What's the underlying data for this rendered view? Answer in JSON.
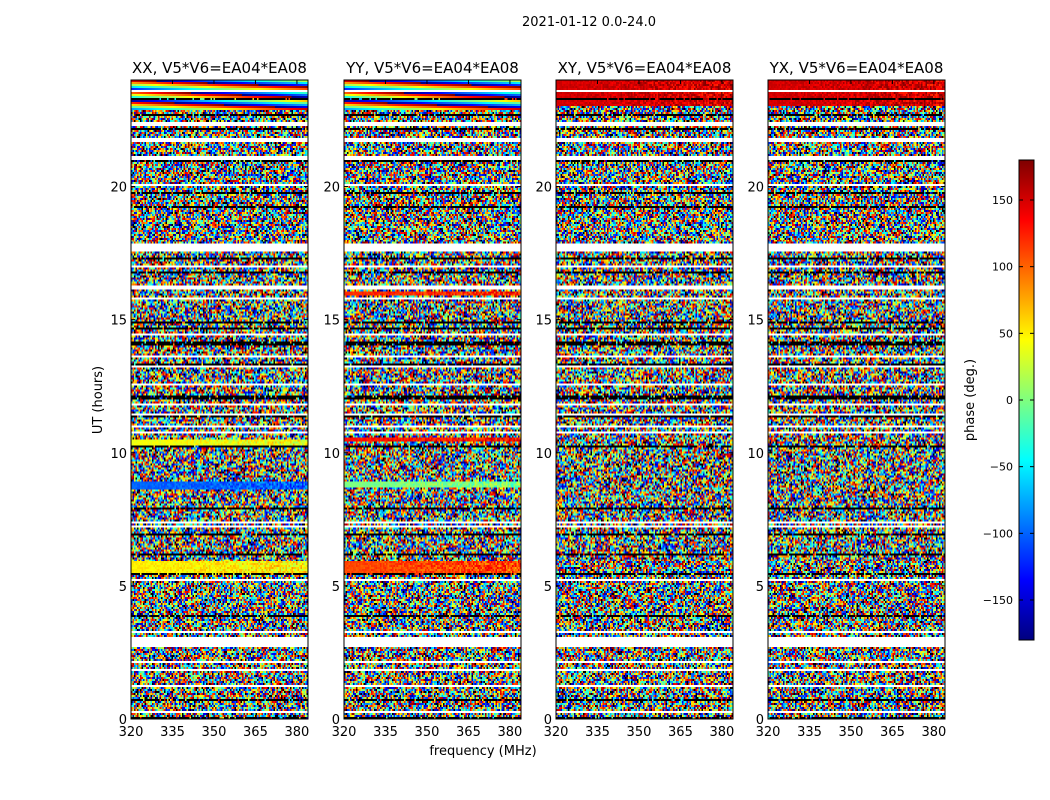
{
  "suptitle": "2021-01-12 0.0-24.0",
  "chart_data": {
    "type": "heatmap",
    "xlabel": "frequency (MHz)",
    "ylabel": "UT (hours)",
    "xlim": [
      320,
      384
    ],
    "ylim": [
      0,
      24
    ],
    "xticks": [
      320,
      335,
      350,
      365,
      380
    ],
    "yticks": [
      0,
      5,
      10,
      15,
      20
    ],
    "colorbar": {
      "label": "phase (deg.)",
      "range": [
        -180,
        180
      ],
      "ticks": [
        -150,
        -100,
        -50,
        0,
        50,
        100,
        150
      ],
      "tick_labels": [
        "−150",
        "−100",
        "−50",
        "0",
        "50",
        "100",
        "150"
      ],
      "colormap": "jet",
      "colors": [
        "#00007f",
        "#0000ff",
        "#007fff",
        "#00ffff",
        "#7fff7f",
        "#ffff00",
        "#ff7f00",
        "#ff0000",
        "#7f0000"
      ]
    },
    "panels": [
      {
        "title": "XX, V5*V6=EA04*EA08",
        "polarization": "XX"
      },
      {
        "title": "YY, V5*V6=EA04*EA08",
        "polarization": "YY"
      },
      {
        "title": "XY, V5*V6=EA04*EA08",
        "polarization": "XY"
      },
      {
        "title": "YX, V5*V6=EA04*EA08",
        "polarization": "YX"
      }
    ],
    "flagged_ut_ranges": [
      [
        2.75,
        3.05
      ],
      [
        3.2,
        3.3
      ],
      [
        5.15,
        5.25
      ],
      [
        16.1,
        16.3
      ],
      [
        17.55,
        17.85
      ],
      [
        21.0,
        21.15
      ],
      [
        22.3,
        22.45
      ]
    ],
    "coherent_features": [
      {
        "panel": "XX",
        "ut": [
          22.9,
          24.0
        ],
        "phase_deg": [
          -120,
          120
        ],
        "note": "banded phase wraps"
      },
      {
        "panel": "XX",
        "ut": [
          8.6,
          8.9
        ],
        "phase_deg": -100
      },
      {
        "panel": "XX",
        "ut": [
          10.3,
          10.5
        ],
        "phase_deg": 40
      },
      {
        "panel": "XX",
        "ut": [
          5.4,
          5.9
        ],
        "phase_deg": 50
      },
      {
        "panel": "YY",
        "ut": [
          22.9,
          24.0
        ],
        "phase_deg": [
          -120,
          120
        ],
        "note": "banded phase wraps"
      },
      {
        "panel": "YY",
        "ut": [
          15.9,
          16.05
        ],
        "phase_deg": 120
      },
      {
        "panel": "YY",
        "ut": [
          10.45,
          10.6
        ],
        "phase_deg": 130
      },
      {
        "panel": "YY",
        "ut": [
          8.7,
          8.9
        ],
        "phase_deg": 0
      },
      {
        "panel": "YY",
        "ut": [
          5.4,
          5.9
        ],
        "phase_deg": 110
      },
      {
        "panel": "XY",
        "ut": [
          23.0,
          24.0
        ],
        "phase_deg": 150,
        "note": "red/orange band"
      },
      {
        "panel": "YX",
        "ut": [
          23.0,
          24.0
        ],
        "phase_deg": 150,
        "note": "red/orange band"
      }
    ]
  }
}
